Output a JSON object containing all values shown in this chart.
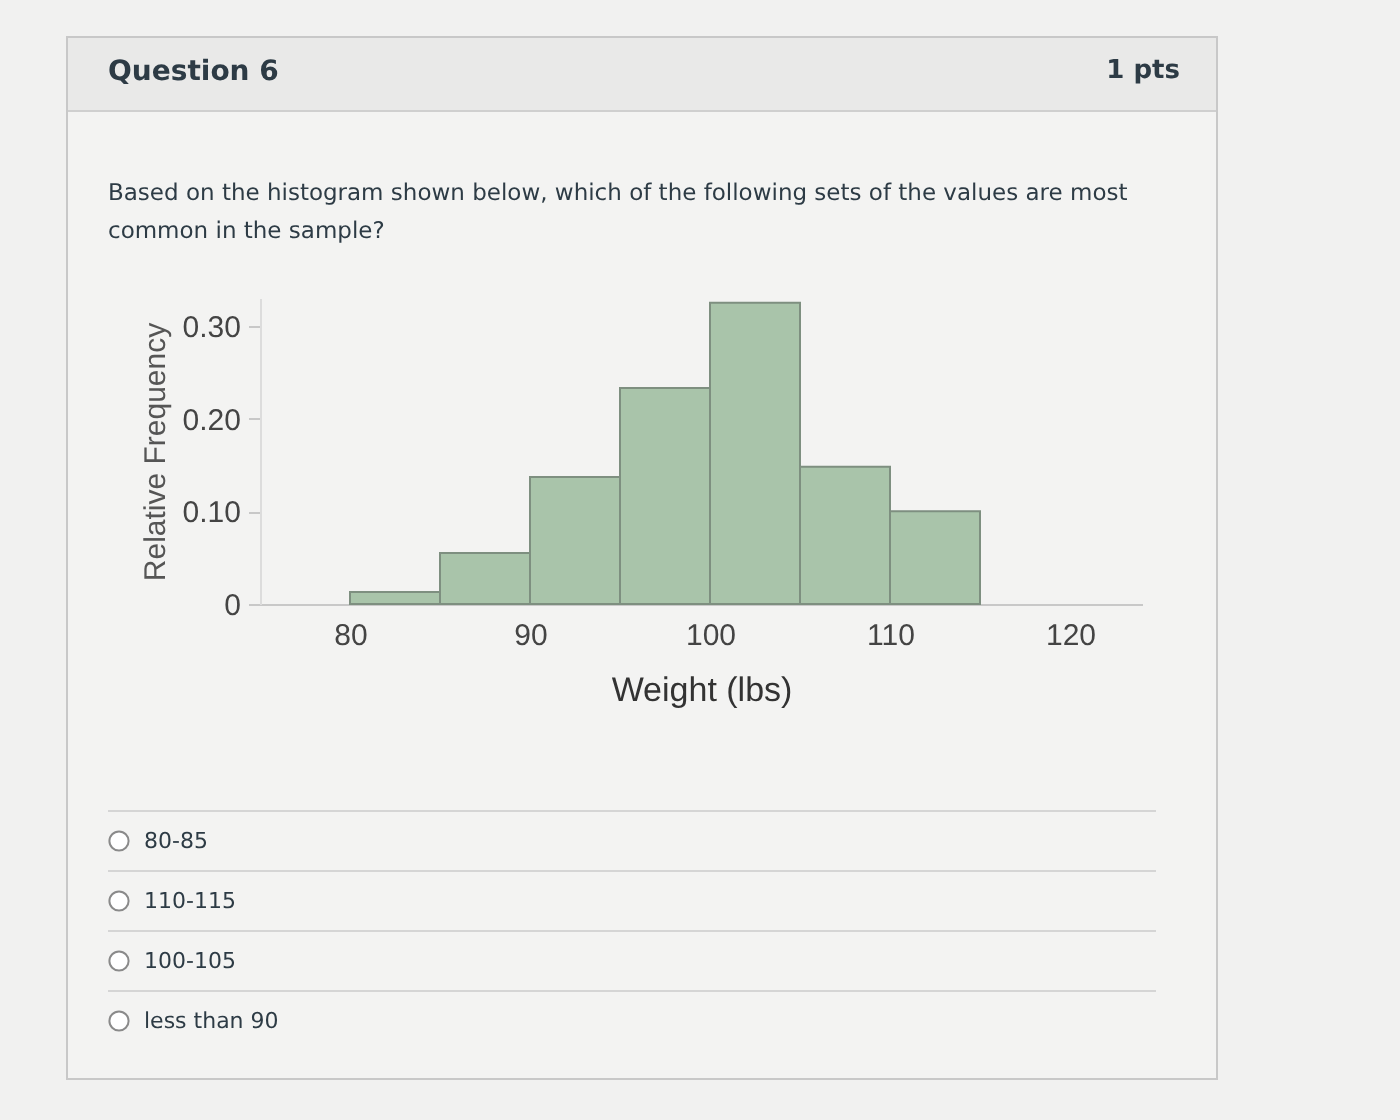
{
  "chart_data": {
    "type": "histogram",
    "title": "Question 6",
    "subtitle": "Based on the histogram shown below, which of the following sets of the values are most common in the sample?",
    "xlabel": "Weight (lbs)",
    "ylabel": "Relative Frequency",
    "bins": [
      80,
      85,
      90,
      95,
      100,
      105,
      110,
      115
    ],
    "values": [
      0.013,
      0.055,
      0.137,
      0.233,
      0.325,
      0.148,
      0.1
    ],
    "color": "#a9c4aa",
    "xlim": [
      75,
      124
    ],
    "xticks": [
      80,
      90,
      100,
      110,
      120
    ],
    "ylim": [
      0,
      0.33
    ],
    "yticks": [
      0,
      {
        "value": 0.1,
        "label": "0.10"
      },
      {
        "value": 0.2,
        "label": "0.20"
      },
      {
        "value": 0.3,
        "label": "0.30"
      }
    ],
    "grid": false,
    "annotations": [
      "1 pts",
      "80-85",
      "110-115",
      "100-105",
      "less than 90"
    ]
  }
}
